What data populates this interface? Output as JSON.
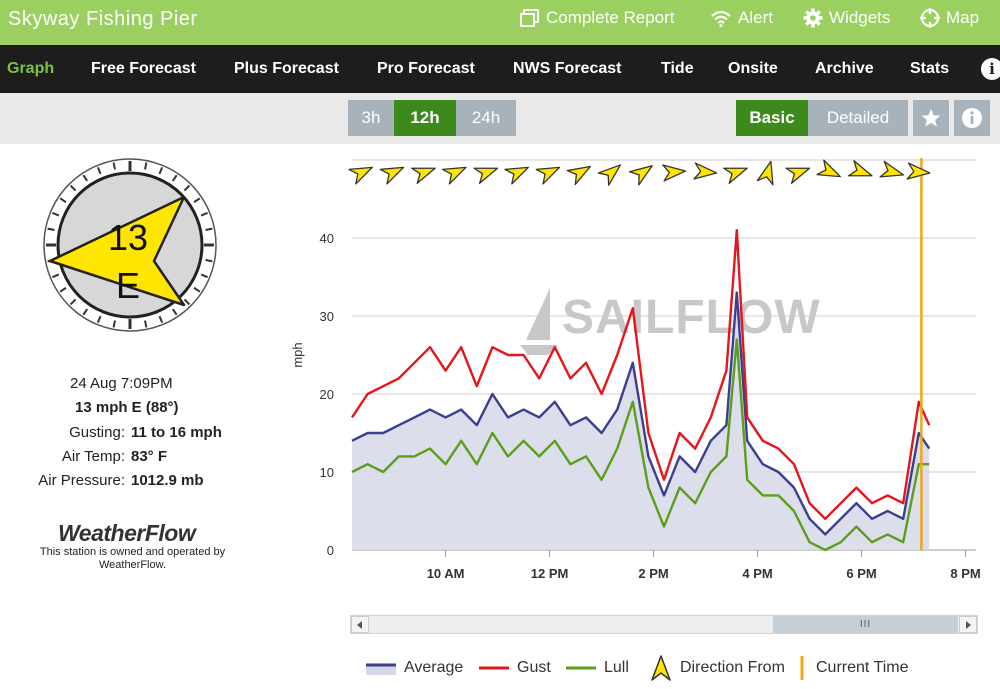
{
  "header": {
    "station_name": "Skyway Fishing Pier",
    "links": [
      {
        "label": "Complete Report",
        "icon": "report-icon"
      },
      {
        "label": "Alert",
        "icon": "wifi-icon"
      },
      {
        "label": "Widgets",
        "icon": "gear-icon"
      },
      {
        "label": "Map",
        "icon": "crosshair-icon"
      }
    ]
  },
  "nav": {
    "items": [
      "Graph",
      "Free Forecast",
      "Plus Forecast",
      "Pro Forecast",
      "NWS Forecast",
      "Tide",
      "Onsite",
      "Archive",
      "Stats"
    ],
    "active": "Graph",
    "info_glyph": "i"
  },
  "toolbar": {
    "ranges": [
      "3h",
      "12h",
      "24h"
    ],
    "active_range": "12h",
    "views": [
      "Basic",
      "Detailed"
    ],
    "active_view": "Basic"
  },
  "current": {
    "compass_speed": "13",
    "compass_dir": "E",
    "timestamp": "24 Aug 7:09PM",
    "wind_summary": "13 mph E (88°)",
    "rows": [
      {
        "label": "Gusting:",
        "value": "11 to 16 mph"
      },
      {
        "label": "Air Temp:",
        "value": "83° F"
      },
      {
        "label": "Air Pressure:",
        "value": "1012.9 mb"
      }
    ]
  },
  "owner": {
    "logo_text": "WeatherFlow",
    "note": "This station is owned and operated by WeatherFlow."
  },
  "chart_data": {
    "type": "area",
    "ylabel": "mph",
    "ylim": [
      0,
      50
    ],
    "yticks": [
      0,
      10,
      20,
      30,
      40
    ],
    "xlim": [
      8.2,
      20.2
    ],
    "xticks": [
      {
        "value": 10,
        "label": "10 AM"
      },
      {
        "value": 12,
        "label": "12 PM"
      },
      {
        "value": 14,
        "label": "2 PM"
      },
      {
        "value": 16,
        "label": "4 PM"
      },
      {
        "value": 18,
        "label": "6 PM"
      },
      {
        "value": 20,
        "label": "8 PM"
      }
    ],
    "current_time": 19.15,
    "watermark": "SAILFLOW",
    "x": [
      8.2,
      8.5,
      8.8,
      9.1,
      9.4,
      9.7,
      10.0,
      10.3,
      10.6,
      10.9,
      11.2,
      11.5,
      11.8,
      12.1,
      12.4,
      12.7,
      13.0,
      13.3,
      13.6,
      13.9,
      14.2,
      14.5,
      14.8,
      15.1,
      15.4,
      15.6,
      15.8,
      16.1,
      16.4,
      16.7,
      17.0,
      17.3,
      17.6,
      17.9,
      18.2,
      18.5,
      18.8,
      19.1,
      19.3
    ],
    "series": [
      {
        "name": "Average",
        "color": "#3a3f8f",
        "values": [
          14,
          15,
          15,
          16,
          17,
          18,
          17,
          18,
          16,
          20,
          17,
          18,
          17,
          19,
          16,
          17,
          15,
          18,
          24,
          12,
          7,
          12,
          10,
          14,
          16,
          33,
          14,
          11,
          10,
          8,
          4,
          2,
          4,
          6,
          4,
          5,
          4,
          15,
          13
        ]
      },
      {
        "name": "Gust",
        "color": "#e8141b",
        "values": [
          17,
          20,
          21,
          22,
          24,
          26,
          23,
          26,
          21,
          26,
          25,
          25,
          22,
          26,
          22,
          24,
          20,
          25,
          31,
          15,
          9,
          15,
          13,
          17,
          23,
          41,
          17,
          14,
          13,
          11,
          6,
          4,
          6,
          8,
          6,
          7,
          6,
          19,
          16
        ]
      },
      {
        "name": "Lull",
        "color": "#5a9e1c",
        "values": [
          10,
          11,
          10,
          12,
          12,
          13,
          11,
          14,
          11,
          15,
          12,
          14,
          12,
          14,
          11,
          12,
          9,
          13,
          19,
          8,
          3,
          8,
          6,
          10,
          12,
          27,
          9,
          7,
          7,
          5,
          1,
          0,
          1,
          3,
          1,
          2,
          1,
          11,
          11
        ]
      }
    ],
    "direction_from": [
      {
        "x": 8.4,
        "deg": 65
      },
      {
        "x": 9.0,
        "deg": 65
      },
      {
        "x": 9.6,
        "deg": 70
      },
      {
        "x": 10.2,
        "deg": 65
      },
      {
        "x": 10.8,
        "deg": 70
      },
      {
        "x": 11.4,
        "deg": 65
      },
      {
        "x": 12.0,
        "deg": 65
      },
      {
        "x": 12.6,
        "deg": 60
      },
      {
        "x": 13.2,
        "deg": 50
      },
      {
        "x": 13.8,
        "deg": 55
      },
      {
        "x": 14.4,
        "deg": 85
      },
      {
        "x": 15.0,
        "deg": 95
      },
      {
        "x": 15.6,
        "deg": 70
      },
      {
        "x": 16.2,
        "deg": 15
      },
      {
        "x": 16.8,
        "deg": 70
      },
      {
        "x": 17.4,
        "deg": 115
      },
      {
        "x": 18.0,
        "deg": 110
      },
      {
        "x": 18.6,
        "deg": 105
      },
      {
        "x": 19.1,
        "deg": 95
      }
    ]
  },
  "legend": {
    "items": [
      {
        "label": "Average",
        "color": "#3a3f8f",
        "kind": "area"
      },
      {
        "label": "Gust",
        "color": "#e8141b",
        "kind": "line"
      },
      {
        "label": "Lull",
        "color": "#5a9e1c",
        "kind": "line"
      },
      {
        "label": "Direction From",
        "color": "#ffe400",
        "kind": "arrow"
      },
      {
        "label": "Current Time",
        "color": "#f2a617",
        "kind": "vline"
      }
    ]
  },
  "scrollbar": {
    "thumb_glyph": "III"
  }
}
